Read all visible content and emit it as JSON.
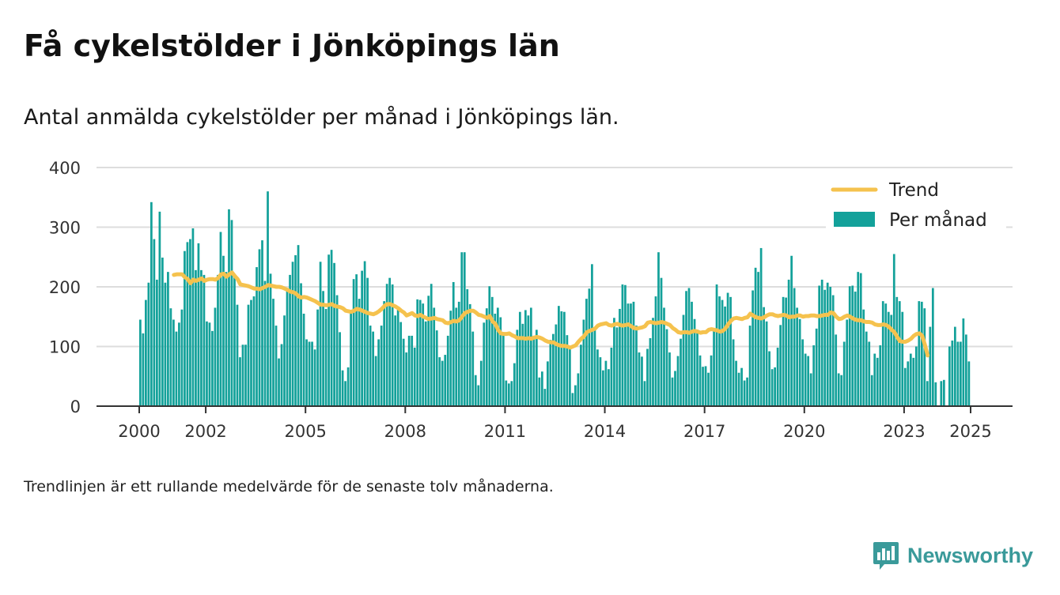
{
  "title": "Få cykelstölder i Jönköpings län",
  "subtitle": "Antal anmälda cykelstölder per månad i Jönköpings län.",
  "footnote": "Trendlinjen är ett rullande medelvärde för de senaste tolv månaderna.",
  "brand": {
    "name": "Newsworthy",
    "icon": "bar-chart-speech-bubble-icon"
  },
  "colors": {
    "bars": "#13a19a",
    "trend": "#f5c24e",
    "grid": "#dddddd",
    "axis": "#333333",
    "brand": "#3a9a9a"
  },
  "chart_data": {
    "type": "bar",
    "x_axis": {
      "ticks": [
        "2000",
        "2002",
        "2005",
        "2008",
        "2011",
        "2014",
        "2017",
        "2020",
        "2023",
        "2025"
      ]
    },
    "y_axis": {
      "ticks": [
        0,
        100,
        200,
        300,
        400
      ],
      "ylim": [
        0,
        400
      ]
    },
    "grid": true,
    "legend": {
      "position": "top-right",
      "entries": [
        "Trend",
        "Per månad"
      ]
    },
    "period": {
      "start": "2000-01",
      "end": "2024-12"
    },
    "series": [
      {
        "name": "Per månad",
        "kind": "bar",
        "values": [
          145,
          122,
          178,
          207,
          342,
          280,
          212,
          326,
          249,
          207,
          225,
          164,
          145,
          125,
          140,
          162,
          260,
          275,
          280,
          298,
          228,
          273,
          228,
          220,
          142,
          140,
          126,
          165,
          220,
          292,
          252,
          225,
          330,
          312,
          218,
          170,
          82,
          103,
          103,
          170,
          178,
          184,
          233,
          263,
          278,
          210,
          360,
          222,
          180,
          135,
          80,
          104,
          152,
          195,
          220,
          242,
          253,
          270,
          206,
          155,
          112,
          108,
          108,
          95,
          162,
          242,
          193,
          163,
          254,
          262,
          240,
          186,
          124,
          60,
          42,
          65,
          158,
          213,
          221,
          180,
          227,
          243,
          215,
          135,
          125,
          84,
          112,
          135,
          176,
          205,
          215,
          204,
          152,
          162,
          141,
          113,
          90,
          118,
          118,
          98,
          179,
          178,
          172,
          142,
          185,
          205,
          165,
          127,
          82,
          76,
          86,
          118,
          160,
          208,
          165,
          175,
          258,
          258,
          196,
          171,
          125,
          52,
          35,
          76,
          140,
          164,
          201,
          183,
          155,
          165,
          149,
          120,
          43,
          38,
          42,
          72,
          128,
          158,
          138,
          161,
          152,
          165,
          118,
          128,
          48,
          58,
          29,
          75,
          111,
          121,
          137,
          168,
          159,
          158,
          119,
          98,
          22,
          35,
          55,
          103,
          145,
          180,
          197,
          238,
          129,
          95,
          82,
          60,
          76,
          62,
          98,
          148,
          132,
          163,
          204,
          203,
          172,
          172,
          175,
          135,
          90,
          83,
          42,
          96,
          114,
          148,
          184,
          258,
          215,
          165,
          129,
          90,
          48,
          59,
          84,
          113,
          153,
          193,
          198,
          175,
          146,
          128,
          85,
          66,
          67,
          56,
          85,
          130,
          204,
          184,
          178,
          167,
          190,
          183,
          112,
          76,
          56,
          64,
          43,
          48,
          135,
          194,
          232,
          225,
          265,
          166,
          142,
          92,
          62,
          65,
          98,
          136,
          183,
          182,
          212,
          252,
          198,
          165,
          146,
          112,
          88,
          84,
          55,
          102,
          130,
          202,
          212,
          195,
          207,
          200,
          186,
          120,
          55,
          52,
          108,
          145,
          201,
          202,
          192,
          225,
          223,
          162,
          125,
          108,
          52,
          88,
          81,
          102,
          176,
          172,
          158,
          153,
          255,
          183,
          176,
          158,
          64,
          75,
          88,
          81,
          100,
          176,
          175,
          164,
          42,
          133,
          198,
          40,
          0,
          42,
          44,
          0,
          100,
          110,
          133,
          108,
          108,
          147,
          120,
          75
        ]
      },
      {
        "name": "Trend",
        "kind": "line",
        "values": [
          null,
          null,
          null,
          null,
          null,
          null,
          null,
          null,
          null,
          null,
          null,
          null,
          220,
          221,
          221,
          221,
          216,
          213,
          206,
          212,
          210,
          212,
          214,
          210,
          212,
          213,
          213,
          212,
          215,
          221,
          222,
          217,
          221,
          224,
          218,
          213,
          204,
          203,
          202,
          201,
          199,
          197,
          197,
          196,
          198,
          200,
          203,
          202,
          201,
          200,
          200,
          199,
          197,
          195,
          192,
          191,
          189,
          184,
          182,
          183,
          182,
          180,
          178,
          176,
          173,
          170,
          170,
          169,
          170,
          171,
          168,
          167,
          166,
          164,
          160,
          159,
          158,
          160,
          163,
          162,
          160,
          158,
          156,
          155,
          154,
          156,
          159,
          163,
          168,
          171,
          171,
          169,
          167,
          164,
          160,
          157,
          152,
          154,
          156,
          152,
          151,
          153,
          150,
          148,
          146,
          147,
          148,
          146,
          145,
          144,
          140,
          139,
          141,
          143,
          142,
          144,
          150,
          156,
          158,
          160,
          160,
          157,
          153,
          152,
          150,
          148,
          151,
          142,
          138,
          128,
          122,
          121,
          121,
          122,
          119,
          117,
          114,
          114,
          114,
          113,
          114,
          113,
          115,
          116,
          115,
          113,
          110,
          108,
          107,
          107,
          104,
          102,
          101,
          101,
          100,
          98,
          100,
          102,
          108,
          113,
          117,
          124,
          126,
          128,
          130,
          135,
          137,
          138,
          139,
          136,
          135,
          137,
          138,
          136,
          135,
          136,
          137,
          134,
          131,
          130,
          131,
          132,
          134,
          140,
          141,
          140,
          139,
          140,
          141,
          140,
          138,
          136,
          131,
          128,
          124,
          123,
          124,
          124,
          123,
          125,
          126,
          125,
          123,
          124,
          124,
          128,
          129,
          128,
          127,
          125,
          126,
          130,
          137,
          143,
          147,
          148,
          147,
          146,
          148,
          149,
          155,
          152,
          149,
          148,
          147,
          149,
          152,
          154,
          154,
          152,
          151,
          152,
          153,
          152,
          149,
          150,
          150,
          152,
          152,
          150,
          151,
          151,
          152,
          152,
          151,
          151,
          152,
          153,
          153,
          157,
          156,
          150,
          146,
          147,
          150,
          152,
          150,
          147,
          145,
          144,
          144,
          142,
          141,
          141,
          140,
          137,
          136,
          136,
          137,
          136,
          133,
          128,
          124,
          116,
          109,
          108,
          108,
          110,
          113,
          118,
          121,
          122,
          118,
          103,
          85
        ]
      }
    ]
  }
}
